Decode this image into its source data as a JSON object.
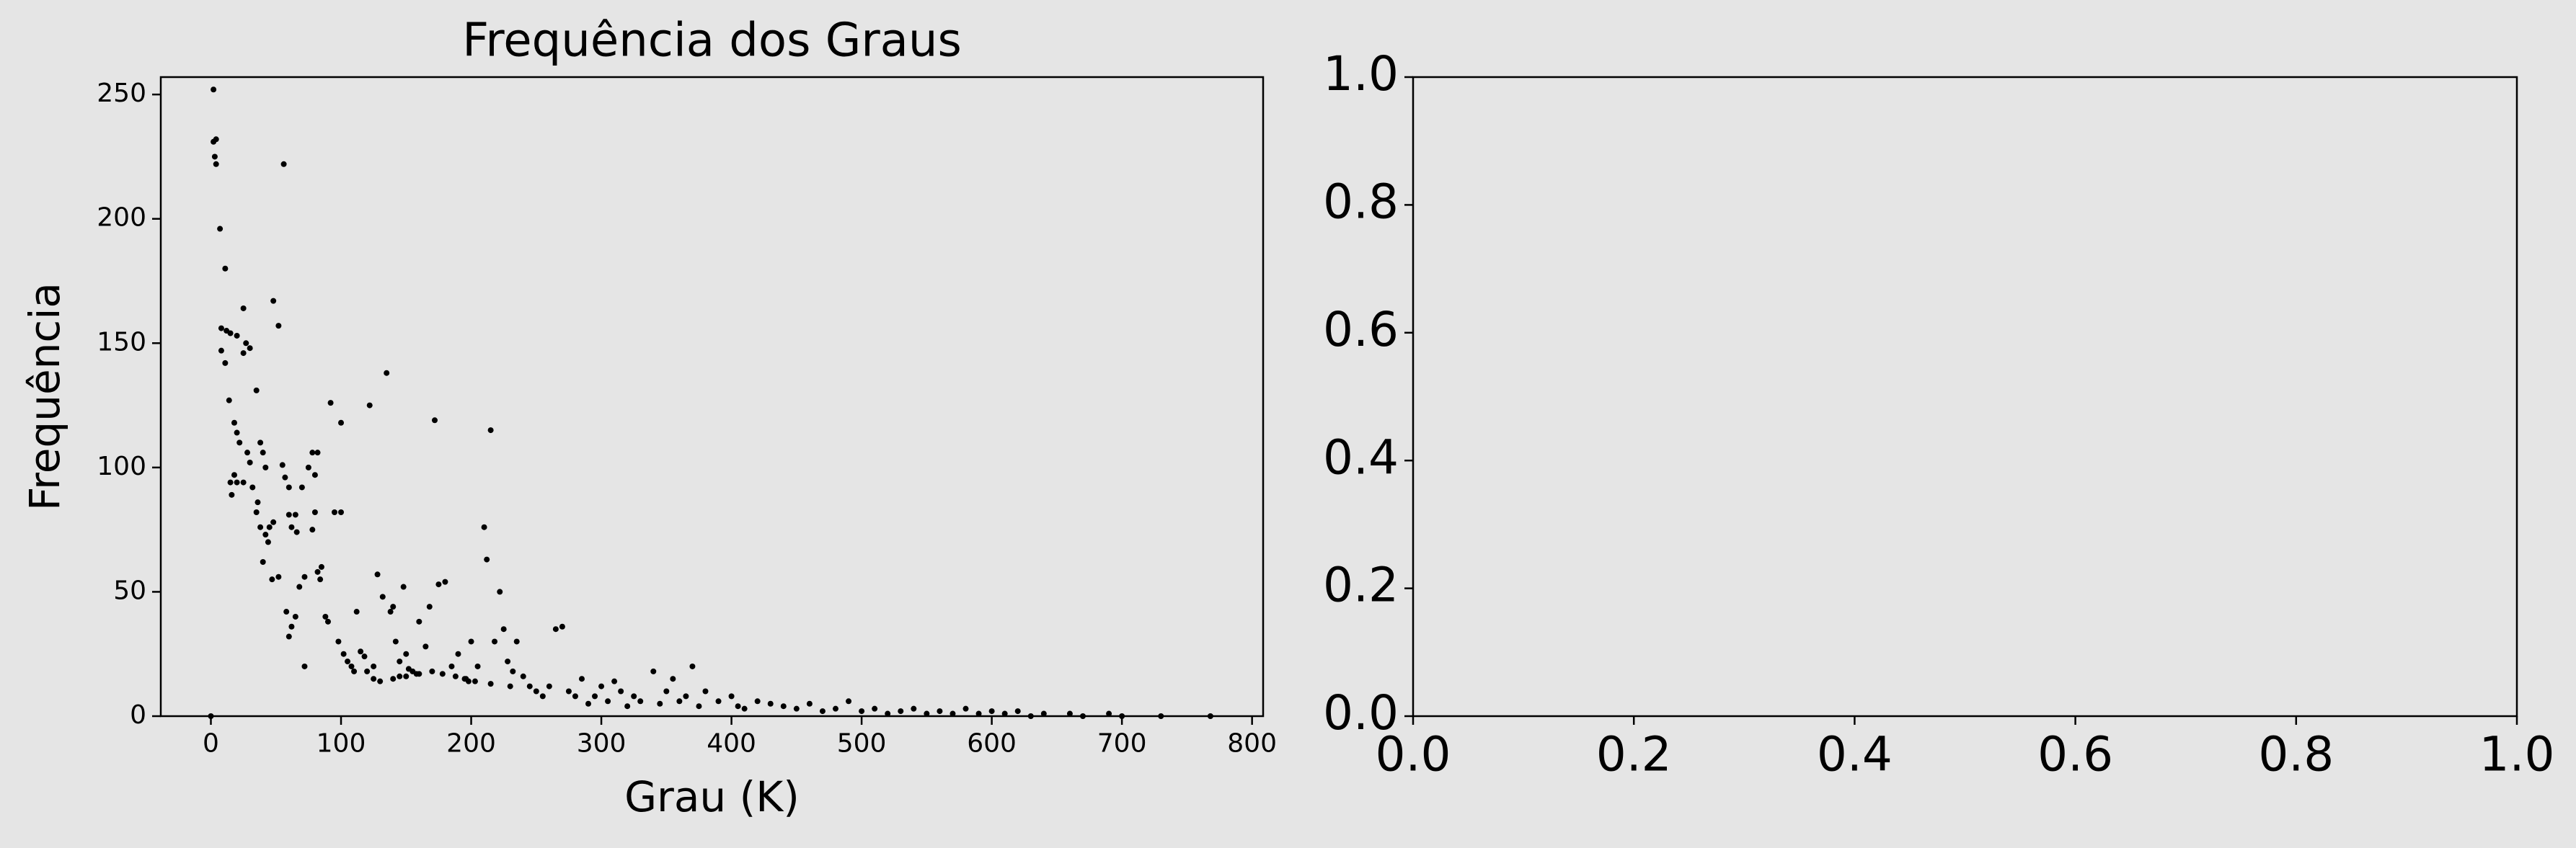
{
  "chart_data": [
    {
      "type": "scatter",
      "title": "Frequência dos Graus",
      "x_label": "Grau (K)",
      "y_label": "Frequência",
      "color": "#000000",
      "x": [
        0,
        2,
        2,
        4,
        3,
        4,
        7,
        11,
        8,
        12,
        8,
        11,
        15,
        20,
        25,
        27,
        30,
        25,
        14,
        18,
        20,
        22,
        28,
        30,
        35,
        38,
        40,
        42,
        15,
        18,
        20,
        25,
        32,
        36,
        16,
        35,
        38,
        42,
        45,
        48,
        44,
        40,
        52,
        47,
        57,
        55,
        60,
        48,
        52,
        56,
        60,
        65,
        62,
        66,
        70,
        75,
        78,
        82,
        80,
        80,
        78,
        82,
        85,
        84,
        88,
        90,
        58,
        62,
        65,
        60,
        68,
        72,
        72,
        92,
        95,
        100,
        100,
        98,
        102,
        105,
        108,
        112,
        115,
        118,
        120,
        122,
        125,
        128,
        132,
        135,
        138,
        140,
        142,
        145,
        148,
        150,
        152,
        155,
        158,
        160,
        165,
        168,
        172,
        175,
        180,
        185,
        190,
        195,
        198,
        200,
        205,
        210,
        212,
        215,
        218,
        222,
        225,
        228,
        232,
        235,
        240,
        245,
        250,
        255,
        260,
        265,
        270,
        275,
        280,
        285,
        290,
        295,
        300,
        305,
        310,
        315,
        320,
        325,
        330,
        340,
        345,
        350,
        355,
        360,
        365,
        370,
        375,
        380,
        390,
        400,
        405,
        410,
        420,
        430,
        440,
        450,
        460,
        470,
        480,
        490,
        500,
        510,
        520,
        530,
        540,
        550,
        560,
        570,
        580,
        590,
        600,
        610,
        620,
        630,
        640,
        660,
        670,
        690,
        700,
        730,
        768,
        110,
        130,
        145,
        160,
        170,
        178,
        188,
        196,
        203,
        215,
        230,
        125,
        140,
        150
      ],
      "y": [
        0,
        252,
        231,
        232,
        225,
        222,
        196,
        180,
        156,
        155,
        147,
        142,
        154,
        153,
        164,
        150,
        148,
        146,
        127,
        118,
        114,
        110,
        106,
        102,
        131,
        110,
        106,
        100,
        94,
        97,
        94,
        94,
        92,
        86,
        89,
        82,
        76,
        73,
        76,
        78,
        70,
        62,
        56,
        55,
        96,
        101,
        92,
        167,
        157,
        222,
        81,
        81,
        76,
        74,
        92,
        100,
        106,
        106,
        97,
        82,
        75,
        58,
        60,
        55,
        40,
        38,
        42,
        36,
        40,
        32,
        52,
        20,
        56,
        126,
        82,
        82,
        118,
        30,
        25,
        22,
        20,
        42,
        26,
        24,
        18,
        125,
        15,
        57,
        48,
        138,
        42,
        44,
        30,
        22,
        52,
        25,
        19,
        18,
        17,
        38,
        28,
        44,
        119,
        53,
        54,
        20,
        25,
        15,
        14,
        30,
        20,
        76,
        63,
        115,
        30,
        50,
        35,
        22,
        18,
        30,
        16,
        12,
        10,
        8,
        12,
        35,
        36,
        10,
        8,
        15,
        5,
        8,
        12,
        6,
        14,
        10,
        4,
        8,
        6,
        18,
        5,
        10,
        15,
        6,
        8,
        20,
        4,
        10,
        6,
        8,
        4,
        3,
        6,
        5,
        4,
        3,
        5,
        2,
        3,
        6,
        2,
        3,
        1,
        2,
        3,
        1,
        2,
        1,
        3,
        1,
        2,
        1,
        2,
        0,
        1,
        1,
        0,
        1,
        0,
        0,
        0,
        18,
        14,
        16,
        17,
        18,
        17,
        16,
        15,
        14,
        13,
        12,
        20,
        15,
        16
      ],
      "xlim": [
        -38.5,
        808.5
      ],
      "ylim": [
        0,
        257
      ],
      "xticks": [
        0,
        100,
        200,
        300,
        400,
        500,
        600,
        700,
        800
      ],
      "yticks": [
        0,
        50,
        100,
        150,
        200,
        250
      ]
    },
    {
      "type": "axes",
      "xlim": [
        0,
        1
      ],
      "ylim": [
        0,
        1
      ],
      "xticks": [
        {
          "value": 0,
          "label": "0.0"
        },
        {
          "value": 0.2,
          "label": "0.2"
        },
        {
          "value": 0.4,
          "label": "0.4"
        },
        {
          "value": 0.6,
          "label": "0.6"
        },
        {
          "value": 0.8,
          "label": "0.8"
        },
        {
          "value": 1,
          "label": "1.0"
        }
      ],
      "yticks": [
        {
          "value": 0,
          "label": "0.0"
        },
        {
          "value": 0.2,
          "label": "0.2"
        },
        {
          "value": 0.4,
          "label": "0.4"
        },
        {
          "value": 0.6,
          "label": "0.6"
        },
        {
          "value": 0.8,
          "label": "0.8"
        },
        {
          "value": 1,
          "label": "1.0"
        }
      ]
    }
  ]
}
